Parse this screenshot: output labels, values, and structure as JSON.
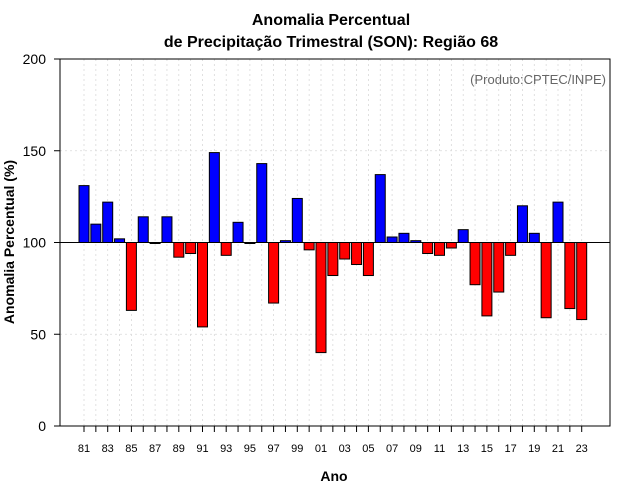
{
  "chart_data": {
    "type": "bar",
    "title_line1": "Anomalia Percentual",
    "title_line2": "de Precipitação Trimestral (SON): Região 68",
    "xlabel": "Ano",
    "ylabel": "Anomalia Percentual (%)",
    "credit": "(Produto:CPTEC/INPE)",
    "ylim": [
      0,
      200
    ],
    "yticks": [
      0,
      50,
      100,
      150,
      200
    ],
    "baseline": 100,
    "colors": {
      "above": "#0000ff",
      "below": "#ff0000",
      "outline": "#000000",
      "grid": "#d9d9d9"
    },
    "years": [
      "81",
      "82",
      "83",
      "84",
      "85",
      "86",
      "87",
      "88",
      "89",
      "90",
      "91",
      "92",
      "93",
      "94",
      "95",
      "96",
      "97",
      "98",
      "99",
      "00",
      "01",
      "02",
      "03",
      "04",
      "05",
      "06",
      "07",
      "08",
      "09",
      "10",
      "11",
      "12",
      "13",
      "14",
      "15",
      "16",
      "17",
      "18",
      "19",
      "20",
      "21",
      "22",
      "23"
    ],
    "xtick_labels": [
      "81",
      "83",
      "85",
      "87",
      "89",
      "91",
      "93",
      "95",
      "97",
      "99",
      "01",
      "03",
      "05",
      "07",
      "09",
      "11",
      "13",
      "15",
      "17",
      "19",
      "21",
      "23"
    ],
    "values": [
      131,
      110,
      122,
      102,
      63,
      114,
      100,
      114,
      92,
      94,
      54,
      149,
      93,
      111,
      100,
      143,
      67,
      101,
      124,
      96,
      40,
      82,
      91,
      88,
      82,
      137,
      103,
      105,
      101,
      94,
      93,
      97,
      107,
      77,
      60,
      73,
      93,
      120,
      105,
      59,
      122,
      64,
      58
    ]
  }
}
